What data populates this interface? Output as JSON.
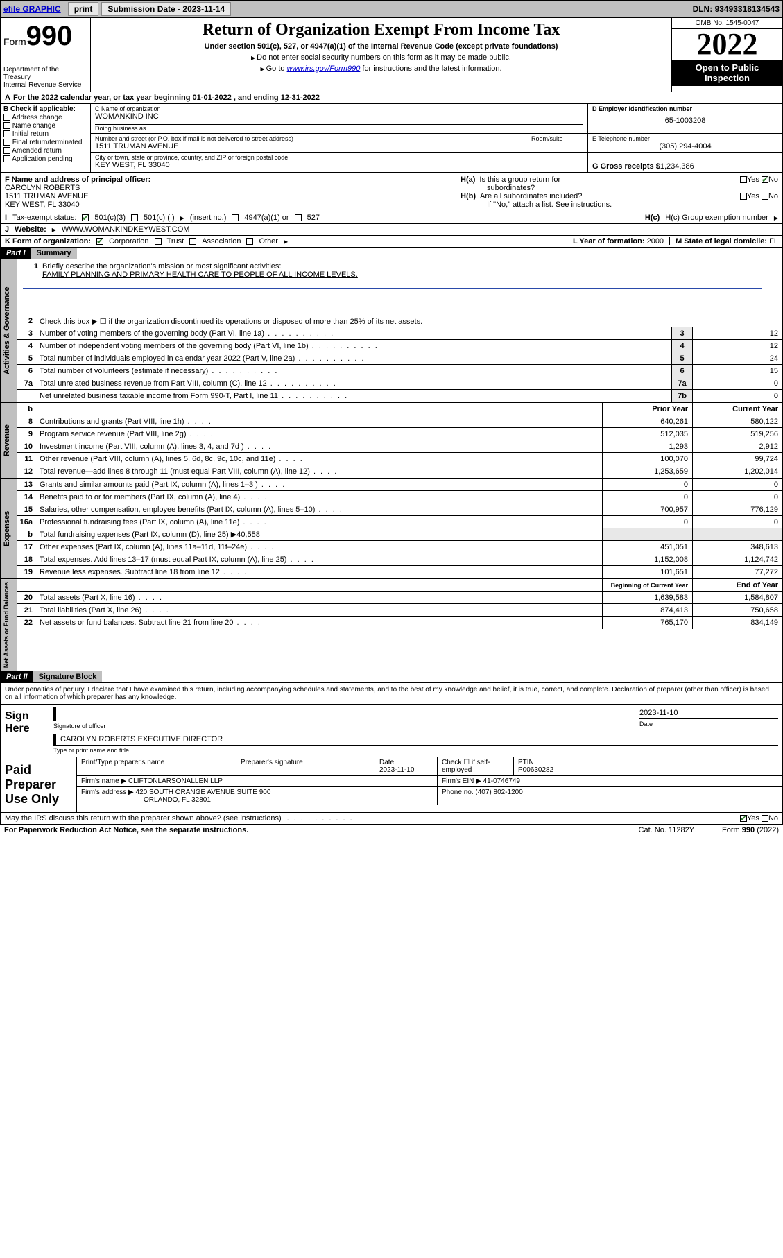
{
  "topbar": {
    "efile": "efile GRAPHIC",
    "print": "print",
    "subdate_lbl": "Submission Date - ",
    "subdate": "2023-11-14",
    "dln_lbl": "DLN: ",
    "dln": "93493318134543"
  },
  "header": {
    "form_word": "Form",
    "form_num": "990",
    "dept": "Department of the Treasury",
    "irs": "Internal Revenue Service",
    "title": "Return of Organization Exempt From Income Tax",
    "sub": "Under section 501(c), 527, or 4947(a)(1) of the Internal Revenue Code (except private foundations)",
    "note1": "Do not enter social security numbers on this form as it may be made public.",
    "note2a": "Go to ",
    "note2_link": "www.irs.gov/Form990",
    "note2b": " for instructions and the latest information.",
    "omb": "OMB No. 1545-0047",
    "year": "2022",
    "openpub": "Open to Public Inspection"
  },
  "lineA": "For the 2022 calendar year, or tax year beginning 01-01-2022    , and ending 12-31-2022",
  "secB": {
    "lbl": "B Check if applicable:",
    "items": [
      "Address change",
      "Name change",
      "Initial return",
      "Final return/terminated",
      "Amended return",
      "Application pending"
    ]
  },
  "secC": {
    "name_lbl": "C Name of organization",
    "name": "WOMANKIND INC",
    "dba_lbl": "Doing business as",
    "dba": "",
    "addr_lbl": "Number and street (or P.O. box if mail is not delivered to street address)",
    "room_lbl": "Room/suite",
    "addr": "1511 TRUMAN AVENUE",
    "city_lbl": "City or town, state or province, country, and ZIP or foreign postal code",
    "city": "KEY WEST, FL  33040"
  },
  "secD": {
    "lbl": "D Employer identification number",
    "val": "65-1003208"
  },
  "secE": {
    "lbl": "E Telephone number",
    "val": "(305) 294-4004"
  },
  "secG": {
    "lbl": "G Gross receipts $",
    "val": "1,234,386"
  },
  "secF": {
    "lbl": "F  Name and address of principal officer:",
    "name": "CAROLYN ROBERTS",
    "addr1": "1511 TRUMAN AVENUE",
    "addr2": "KEY WEST, FL  33040"
  },
  "secH": {
    "a_lbl": "H(a)  Is this a group return for subordinates?",
    "b_lbl": "H(b)  Are all subordinates included?",
    "b_note": "If \"No,\" attach a list. See instructions.",
    "c_lbl": "H(c)  Group exemption number",
    "yes": "Yes",
    "no": "No"
  },
  "secI": {
    "lbl": "Tax-exempt status:",
    "c501c3": "501(c)(3)",
    "c501c": "501(c) (  )",
    "insert": "(insert no.)",
    "c4947": "4947(a)(1) or",
    "c527": "527"
  },
  "secJ": {
    "lbl": "Website:",
    "val": "WWW.WOMANKINDKEYWEST.COM"
  },
  "secK": {
    "lbl": "K Form of organization:",
    "corp": "Corporation",
    "trust": "Trust",
    "assoc": "Association",
    "other": "Other"
  },
  "secL": {
    "lbl": "L Year of formation:",
    "val": "2000"
  },
  "secM": {
    "lbl": "M State of legal domicile:",
    "val": "FL"
  },
  "part1": {
    "hdr": "Part I",
    "title": "Summary",
    "l1": "Briefly describe the organization's mission or most significant activities:",
    "mission": "FAMILY PLANNING AND PRIMARY HEALTH CARE TO PEOPLE OF ALL INCOME LEVELS.",
    "l2": "Check this box ▶ ☐  if the organization discontinued its operations or disposed of more than 25% of its net assets.",
    "lines_gov": [
      {
        "n": "3",
        "t": "Number of voting members of the governing body (Part VI, line 1a)",
        "box": "3",
        "v": "12"
      },
      {
        "n": "4",
        "t": "Number of independent voting members of the governing body (Part VI, line 1b)",
        "box": "4",
        "v": "12"
      },
      {
        "n": "5",
        "t": "Total number of individuals employed in calendar year 2022 (Part V, line 2a)",
        "box": "5",
        "v": "24"
      },
      {
        "n": "6",
        "t": "Total number of volunteers (estimate if necessary)",
        "box": "6",
        "v": "15"
      },
      {
        "n": "7a",
        "t": "Total unrelated business revenue from Part VIII, column (C), line 12",
        "box": "7a",
        "v": "0"
      },
      {
        "n": "",
        "t": "Net unrelated business taxable income from Form 990-T, Part I, line 11",
        "box": "7b",
        "v": "0"
      }
    ],
    "col_prior": "Prior Year",
    "col_curr": "Current Year",
    "lines_rev": [
      {
        "n": "8",
        "t": "Contributions and grants (Part VIII, line 1h)",
        "p": "640,261",
        "c": "580,122"
      },
      {
        "n": "9",
        "t": "Program service revenue (Part VIII, line 2g)",
        "p": "512,035",
        "c": "519,256"
      },
      {
        "n": "10",
        "t": "Investment income (Part VIII, column (A), lines 3, 4, and 7d )",
        "p": "1,293",
        "c": "2,912"
      },
      {
        "n": "11",
        "t": "Other revenue (Part VIII, column (A), lines 5, 6d, 8c, 9c, 10c, and 11e)",
        "p": "100,070",
        "c": "99,724"
      },
      {
        "n": "12",
        "t": "Total revenue—add lines 8 through 11 (must equal Part VIII, column (A), line 12)",
        "p": "1,253,659",
        "c": "1,202,014"
      }
    ],
    "lines_exp": [
      {
        "n": "13",
        "t": "Grants and similar amounts paid (Part IX, column (A), lines 1–3 )",
        "p": "0",
        "c": "0"
      },
      {
        "n": "14",
        "t": "Benefits paid to or for members (Part IX, column (A), line 4)",
        "p": "0",
        "c": "0"
      },
      {
        "n": "15",
        "t": "Salaries, other compensation, employee benefits (Part IX, column (A), lines 5–10)",
        "p": "700,957",
        "c": "776,129"
      },
      {
        "n": "16a",
        "t": "Professional fundraising fees (Part IX, column (A), line 11e)",
        "p": "0",
        "c": "0"
      },
      {
        "n": "b",
        "t": "Total fundraising expenses (Part IX, column (D), line 25) ▶40,558",
        "p": "",
        "c": "",
        "noval": true
      },
      {
        "n": "17",
        "t": "Other expenses (Part IX, column (A), lines 11a–11d, 11f–24e)",
        "p": "451,051",
        "c": "348,613"
      },
      {
        "n": "18",
        "t": "Total expenses. Add lines 13–17 (must equal Part IX, column (A), line 25)",
        "p": "1,152,008",
        "c": "1,124,742"
      },
      {
        "n": "19",
        "t": "Revenue less expenses. Subtract line 18 from line 12",
        "p": "101,651",
        "c": "77,272"
      }
    ],
    "col_begin": "Beginning of Current Year",
    "col_end": "End of Year",
    "lines_net": [
      {
        "n": "20",
        "t": "Total assets (Part X, line 16)",
        "p": "1,639,583",
        "c": "1,584,807"
      },
      {
        "n": "21",
        "t": "Total liabilities (Part X, line 26)",
        "p": "874,413",
        "c": "750,658"
      },
      {
        "n": "22",
        "t": "Net assets or fund balances. Subtract line 21 from line 20",
        "p": "765,170",
        "c": "834,149"
      }
    ],
    "vert_gov": "Activities & Governance",
    "vert_rev": "Revenue",
    "vert_exp": "Expenses",
    "vert_net": "Net Assets or Fund Balances"
  },
  "part2": {
    "hdr": "Part II",
    "title": "Signature Block",
    "decl": "Under penalties of perjury, I declare that I have examined this return, including accompanying schedules and statements, and to the best of my knowledge and belief, it is true, correct, and complete. Declaration of preparer (other than officer) is based on all information of which preparer has any knowledge.",
    "sign_here": "Sign Here",
    "sig_officer": "Signature of officer",
    "sig_date": "Date",
    "sig_date_val": "2023-11-10",
    "sig_name": "CAROLYN ROBERTS  EXECUTIVE DIRECTOR",
    "sig_name_lbl": "Type or print name and title",
    "paid": "Paid Preparer Use Only",
    "prep_name_lbl": "Print/Type preparer's name",
    "prep_sig_lbl": "Preparer's signature",
    "prep_date_lbl": "Date",
    "prep_date": "2023-11-10",
    "prep_check": "Check ☐ if self-employed",
    "ptin_lbl": "PTIN",
    "ptin": "P00630282",
    "firm_name_lbl": "Firm's name    ▶",
    "firm_name": "CLIFTONLARSONALLEN LLP",
    "firm_ein_lbl": "Firm's EIN ▶",
    "firm_ein": "41-0746749",
    "firm_addr_lbl": "Firm's address ▶",
    "firm_addr1": "420 SOUTH ORANGE AVENUE SUITE 900",
    "firm_addr2": "ORLANDO, FL  32801",
    "phone_lbl": "Phone no.",
    "phone": "(407) 802-1200",
    "discuss": "May the IRS discuss this return with the preparer shown above? (see instructions)",
    "yes": "Yes",
    "no": "No"
  },
  "footer": {
    "left": "For Paperwork Reduction Act Notice, see the separate instructions.",
    "mid": "Cat. No. 11282Y",
    "right": "Form 990 (2022)"
  }
}
